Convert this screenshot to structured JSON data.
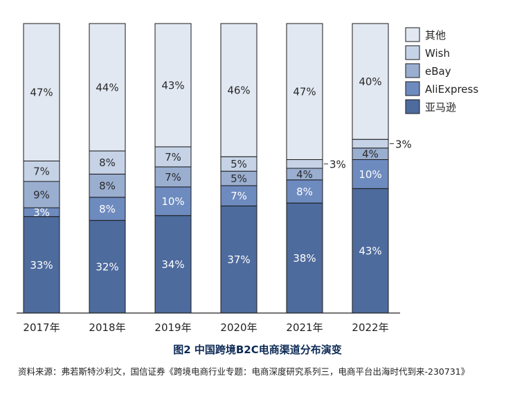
{
  "chart_data": {
    "type": "bar",
    "stacked": true,
    "percent": true,
    "categories": [
      "2017年",
      "2018年",
      "2019年",
      "2020年",
      "2021年",
      "2022年"
    ],
    "series": [
      {
        "name": "亚马逊",
        "color": "#4e6b9d",
        "values": [
          33,
          32,
          34,
          37,
          38,
          43
        ]
      },
      {
        "name": "AliExpress",
        "color": "#6e8bbf",
        "values": [
          3,
          8,
          10,
          7,
          8,
          10
        ]
      },
      {
        "name": "eBay",
        "color": "#9aaed0",
        "values": [
          9,
          8,
          7,
          5,
          4,
          4
        ]
      },
      {
        "name": "Wish",
        "color": "#c6d3e7",
        "values": [
          7,
          8,
          7,
          5,
          3,
          3
        ]
      },
      {
        "name": "其他",
        "color": "#e2e8f2",
        "values": [
          47,
          44,
          43,
          46,
          47,
          40
        ]
      }
    ],
    "ylim": [
      0,
      100
    ],
    "grid": false,
    "legend": "right",
    "xlabel": "",
    "ylabel": "",
    "data_labels": {
      "亚马逊": [
        "33%",
        "32%",
        "34%",
        "37%",
        "38%",
        "43%"
      ],
      "AliExpress": [
        "3%",
        "8%",
        "10%",
        "7%",
        "8%",
        "10%"
      ],
      "eBay": [
        "9%",
        "8%",
        "7%",
        "5%",
        "4%",
        "4%"
      ],
      "Wish": [
        "7%",
        "8%",
        "7%",
        "5%",
        "3%",
        "3%"
      ],
      "其他": [
        "47%",
        "44%",
        "43%",
        "46%",
        "47%",
        "40%"
      ]
    }
  },
  "caption": {
    "title": "图2  中国跨境B2C电商渠道分布演变",
    "source": "资料来源：弗若斯特沙利文，国信证券《跨境电商行业专题：电商深度研究系列三，电商平台出海时代到来-230731》"
  }
}
